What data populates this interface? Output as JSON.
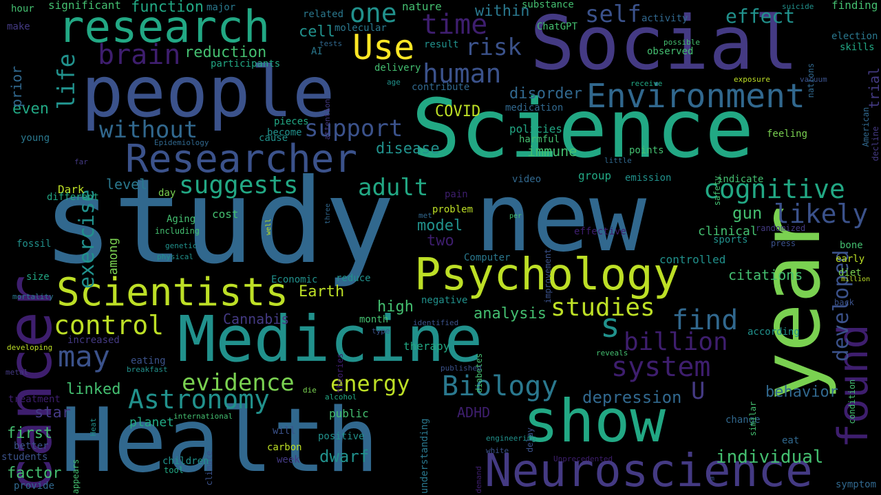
{
  "background": "#000000",
  "palette": {
    "p1": "#3e1e6e",
    "p2": "#443a83",
    "p3": "#3b528b",
    "p4": "#31688e",
    "p5": "#2a788e",
    "p6": "#21918c",
    "p7": "#22a884",
    "p8": "#44bf70",
    "p9": "#7ad151",
    "p10": "#bddf26",
    "p11": "#fde725"
  },
  "words": [
    {
      "text": "study",
      "c": "p4"
    },
    {
      "text": "new",
      "c": "p4"
    },
    {
      "text": "Science",
      "c": "p7"
    },
    {
      "text": "Health",
      "c": "p4"
    },
    {
      "text": "year",
      "c": "p9"
    },
    {
      "text": "Social",
      "c": "p2"
    },
    {
      "text": "people",
      "c": "p3"
    },
    {
      "text": "Medicine",
      "c": "p6"
    },
    {
      "text": "cancer",
      "c": "p1"
    },
    {
      "text": "show",
      "c": "p7"
    },
    {
      "text": "Psychology",
      "c": "p10"
    },
    {
      "text": "Neuroscience",
      "c": "p2"
    },
    {
      "text": "research",
      "c": "p7"
    },
    {
      "text": "Researcher",
      "c": "p3"
    },
    {
      "text": "Scientists",
      "c": "p10"
    },
    {
      "text": "found",
      "c": "p1"
    },
    {
      "text": "Environment",
      "c": "p4"
    },
    {
      "text": "s",
      "c": "p6"
    },
    {
      "text": "Astronomy",
      "c": "p6"
    },
    {
      "text": "Biology",
      "c": "p5"
    },
    {
      "text": "may",
      "c": "p3"
    },
    {
      "text": "cognitive",
      "c": "p7"
    },
    {
      "text": "billion",
      "c": "p1"
    },
    {
      "text": "system",
      "c": "p1"
    },
    {
      "text": "time",
      "c": "p1"
    },
    {
      "text": "one",
      "c": "p6"
    },
    {
      "text": "Use",
      "c": "p11"
    },
    {
      "text": "control",
      "c": "p10"
    },
    {
      "text": "studies",
      "c": "p10"
    },
    {
      "text": "evidence",
      "c": "p9"
    },
    {
      "text": "find",
      "c": "p4"
    },
    {
      "text": "likely",
      "c": "p3"
    },
    {
      "text": "developed",
      "c": "p3"
    },
    {
      "text": "self",
      "c": "p3"
    },
    {
      "text": "effect",
      "c": "p6"
    },
    {
      "text": "suggests",
      "c": "p7"
    },
    {
      "text": "energy",
      "c": "p10"
    },
    {
      "text": "adult",
      "c": "p7"
    },
    {
      "text": "human",
      "c": "p3"
    },
    {
      "text": "brain",
      "c": "p1"
    },
    {
      "text": "exercise",
      "c": "p6"
    },
    {
      "text": "life",
      "c": "p6"
    },
    {
      "text": "without",
      "c": "p4"
    },
    {
      "text": "support",
      "c": "p3"
    },
    {
      "text": "risk",
      "c": "p3"
    },
    {
      "text": "U",
      "c": "p2"
    },
    {
      "text": "depression",
      "c": "p4"
    },
    {
      "text": "dwarf",
      "c": "p6"
    },
    {
      "text": "individual",
      "c": "p8"
    },
    {
      "text": "linked",
      "c": "p8"
    },
    {
      "text": "behavior",
      "c": "p4"
    },
    {
      "text": "gun",
      "c": "p8"
    },
    {
      "text": "disorder",
      "c": "p4"
    },
    {
      "text": "analysis",
      "c": "p8"
    },
    {
      "text": "disease",
      "c": "p6"
    },
    {
      "text": "reduction",
      "c": "p8"
    },
    {
      "text": "function",
      "c": "p7"
    },
    {
      "text": "within",
      "c": "p5"
    },
    {
      "text": "immune",
      "c": "p8"
    },
    {
      "text": "model",
      "c": "p6"
    },
    {
      "text": "star",
      "c": "p2"
    },
    {
      "text": "factor",
      "c": "p8"
    },
    {
      "text": "first",
      "c": "p8"
    },
    {
      "text": "level",
      "c": "p5"
    },
    {
      "text": "high",
      "c": "p8"
    },
    {
      "text": "even",
      "c": "p7"
    },
    {
      "text": "cell",
      "c": "p6"
    },
    {
      "text": "Earth",
      "c": "p10"
    },
    {
      "text": "two",
      "c": "p1"
    },
    {
      "text": "citations",
      "c": "p8"
    },
    {
      "text": "COVID",
      "c": "p10"
    },
    {
      "text": "Cannabis",
      "c": "p2"
    },
    {
      "text": "ADHD",
      "c": "p1"
    },
    {
      "text": "planet",
      "c": "p7"
    },
    {
      "text": "among",
      "c": "p9"
    },
    {
      "text": "prior",
      "c": "p4"
    },
    {
      "text": "trial",
      "c": "p2"
    },
    {
      "text": "clinical",
      "c": "p8"
    },
    {
      "text": "controlled",
      "c": "p6"
    },
    {
      "text": "policies",
      "c": "p7"
    },
    {
      "text": "group",
      "c": "p7"
    },
    {
      "text": "therapy",
      "c": "p7"
    },
    {
      "text": "public",
      "c": "p8"
    },
    {
      "text": "Dark",
      "c": "p10"
    },
    {
      "text": "significant",
      "c": "p8"
    },
    {
      "text": "ChatGPT",
      "c": "p8"
    },
    {
      "text": "observed",
      "c": "p8"
    },
    {
      "text": "skills",
      "c": "p7"
    },
    {
      "text": "election",
      "c": "p5"
    },
    {
      "text": "finding",
      "c": "p8"
    },
    {
      "text": "substance",
      "c": "p8"
    },
    {
      "text": "nature",
      "c": "p8"
    },
    {
      "text": "major",
      "c": "p5"
    },
    {
      "text": "hour",
      "c": "p8"
    },
    {
      "text": "make",
      "c": "p2"
    },
    {
      "text": "related",
      "c": "p5"
    },
    {
      "text": "molecular",
      "c": "p5"
    },
    {
      "text": "AI",
      "c": "p5"
    },
    {
      "text": "participants",
      "c": "p7"
    },
    {
      "text": "delivery",
      "c": "p8"
    },
    {
      "text": "contribute",
      "c": "p4"
    },
    {
      "text": "feeling",
      "c": "p9"
    },
    {
      "text": "points",
      "c": "p8"
    },
    {
      "text": "emission",
      "c": "p6"
    },
    {
      "text": "indicate",
      "c": "p8"
    },
    {
      "text": "decline",
      "c": "p2"
    },
    {
      "text": "sports",
      "c": "p6"
    },
    {
      "text": "bone",
      "c": "p8"
    },
    {
      "text": "early",
      "c": "p10"
    },
    {
      "text": "diet",
      "c": "p9"
    },
    {
      "text": "according",
      "c": "p6"
    },
    {
      "text": "change",
      "c": "p4"
    },
    {
      "text": "eat",
      "c": "p4"
    },
    {
      "text": "similar",
      "c": "p8"
    },
    {
      "text": "condition",
      "c": "p8"
    },
    {
      "text": "million",
      "c": "p10"
    },
    {
      "text": "back",
      "c": "p3"
    },
    {
      "text": "press",
      "c": "p3"
    },
    {
      "text": "randomized",
      "c": "p2"
    },
    {
      "text": "effective",
      "c": "p1"
    },
    {
      "text": "improvement",
      "c": "p3"
    },
    {
      "text": "per",
      "c": "p8"
    },
    {
      "text": "cost",
      "c": "p8"
    },
    {
      "text": "day",
      "c": "p9"
    },
    {
      "text": "including",
      "c": "p8"
    },
    {
      "text": "Aging",
      "c": "p8"
    },
    {
      "text": "genetic",
      "c": "p6"
    },
    {
      "text": "physical",
      "c": "p6"
    },
    {
      "text": "fossil",
      "c": "p6"
    },
    {
      "text": "different",
      "c": "p7"
    },
    {
      "text": "size",
      "c": "p7"
    },
    {
      "text": "mortality",
      "c": "p5"
    },
    {
      "text": "Economic",
      "c": "p6"
    },
    {
      "text": "reduce",
      "c": "p6"
    },
    {
      "text": "negative",
      "c": "p6"
    },
    {
      "text": "month",
      "c": "p8"
    },
    {
      "text": "identified",
      "c": "p3"
    },
    {
      "text": "type",
      "c": "p3"
    },
    {
      "text": "theories",
      "c": "p1"
    },
    {
      "text": "increased",
      "c": "p2"
    },
    {
      "text": "developing",
      "c": "p10"
    },
    {
      "text": "eating",
      "c": "p3"
    },
    {
      "text": "breakfast",
      "c": "p6"
    },
    {
      "text": "metal",
      "c": "p2"
    },
    {
      "text": "treatment",
      "c": "p1"
    },
    {
      "text": "better",
      "c": "p3"
    },
    {
      "text": "students",
      "c": "p3"
    },
    {
      "text": "provide",
      "c": "p4"
    },
    {
      "text": "appears",
      "c": "p8"
    },
    {
      "text": "Heat",
      "c": "p6"
    },
    {
      "text": "international",
      "c": "p8"
    },
    {
      "text": "will",
      "c": "p3"
    },
    {
      "text": "climate",
      "c": "p3"
    },
    {
      "text": "children",
      "c": "p6"
    },
    {
      "text": "tool",
      "c": "p7"
    },
    {
      "text": "carbon",
      "c": "p10"
    },
    {
      "text": "week",
      "c": "p2"
    },
    {
      "text": "positive",
      "c": "p6"
    },
    {
      "text": "understanding",
      "c": "p5"
    },
    {
      "text": "alcohol",
      "c": "p7"
    },
    {
      "text": "die",
      "c": "p9"
    },
    {
      "text": "delay",
      "c": "p3"
    },
    {
      "text": "engineering",
      "c": "p6"
    },
    {
      "text": "white",
      "c": "p3"
    },
    {
      "text": "demand",
      "c": "p1"
    },
    {
      "text": "Unprecedented",
      "c": "p1"
    },
    {
      "text": "symptom",
      "c": "p4"
    },
    {
      "text": "m",
      "c": "p3"
    },
    {
      "text": "diabetes",
      "c": "p8"
    },
    {
      "text": "Computer",
      "c": "p5"
    },
    {
      "text": "published",
      "c": "p3"
    },
    {
      "text": "pain",
      "c": "p1"
    },
    {
      "text": "video",
      "c": "p4"
    },
    {
      "text": "met",
      "c": "p4"
    },
    {
      "text": "problem",
      "c": "p10"
    },
    {
      "text": "three",
      "c": "p4"
    },
    {
      "text": "well",
      "c": "p10"
    },
    {
      "text": "little",
      "c": "p4"
    },
    {
      "text": "harmful",
      "c": "p8"
    },
    {
      "text": "medication",
      "c": "p4"
    },
    {
      "text": "reveals",
      "c": "p8"
    },
    {
      "text": "Epidemiology",
      "c": "p4"
    },
    {
      "text": "far",
      "c": "p2"
    },
    {
      "text": "young",
      "c": "p5"
    },
    {
      "text": "cause",
      "c": "p6"
    },
    {
      "text": "become",
      "c": "p6"
    },
    {
      "text": "pieces",
      "c": "p7"
    },
    {
      "text": "attention",
      "c": "p2"
    },
    {
      "text": "tests",
      "c": "p4"
    },
    {
      "text": "result",
      "c": "p6"
    },
    {
      "text": "age",
      "c": "p6"
    },
    {
      "text": "activity",
      "c": "p4"
    },
    {
      "text": "possible",
      "c": "p8"
    },
    {
      "text": "suicide",
      "c": "p6"
    },
    {
      "text": "nations",
      "c": "p4"
    },
    {
      "text": "receive",
      "c": "p7"
    },
    {
      "text": "exposure",
      "c": "p10"
    },
    {
      "text": "vacuum",
      "c": "p3"
    },
    {
      "text": "American",
      "c": "p4"
    },
    {
      "text": "safety",
      "c": "p8"
    }
  ]
}
